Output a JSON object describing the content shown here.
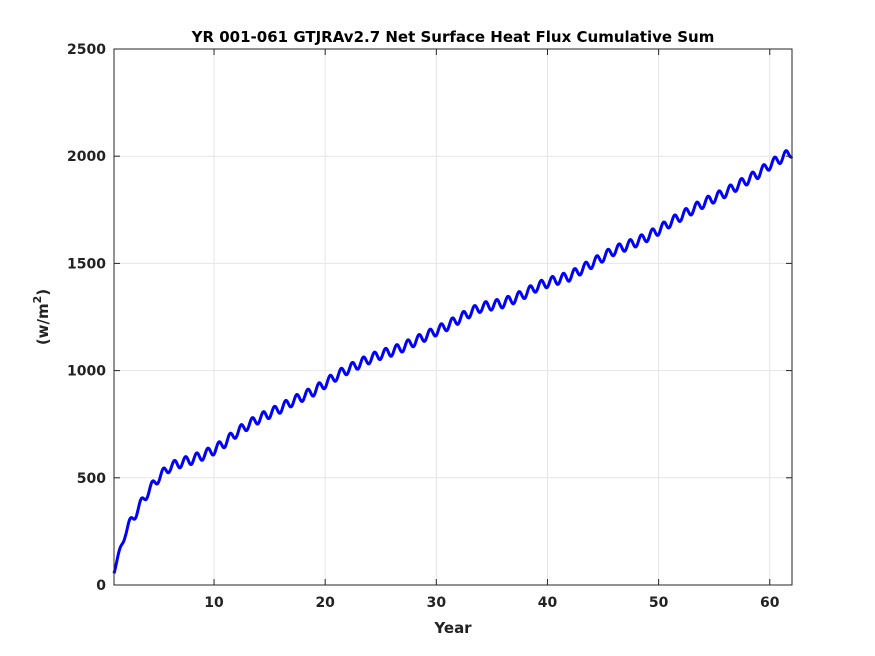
{
  "chart_data": {
    "type": "line",
    "title": "YR 001-061 GTJRAv2.7 Net Surface Heat Flux  Cumulative Sum",
    "xlabel": "Year",
    "ylabel_base": "(w/m",
    "ylabel_sup": "2",
    "ylabel_close": ")",
    "xlim": [
      1,
      62
    ],
    "ylim": [
      0,
      2500
    ],
    "xticks": [
      10,
      20,
      30,
      40,
      50,
      60
    ],
    "yticks": [
      0,
      500,
      1000,
      1500,
      2000,
      2500
    ],
    "grid": true,
    "series": [
      {
        "color": "#0000ff",
        "x": [
          1,
          2,
          3,
          4,
          5,
          6,
          7,
          8,
          9,
          10,
          11,
          12,
          13,
          14,
          15,
          16,
          17,
          18,
          19,
          20,
          21,
          22,
          23,
          24,
          25,
          26,
          27,
          28,
          29,
          30,
          31,
          32,
          33,
          34,
          35,
          36,
          37,
          38,
          39,
          40,
          41,
          42,
          43,
          44,
          45,
          46,
          47,
          48,
          49,
          50,
          51,
          52,
          53,
          54,
          55,
          56,
          57,
          58,
          59,
          60,
          61,
          62
        ],
        "trend": [
          60,
          245,
          340,
          430,
          500,
          550,
          570,
          585,
          605,
          630,
          665,
          710,
          745,
          775,
          800,
          825,
          855,
          880,
          905,
          940,
          975,
          1005,
          1030,
          1055,
          1075,
          1090,
          1110,
          1135,
          1160,
          1185,
          1210,
          1240,
          1270,
          1295,
          1305,
          1315,
          1335,
          1360,
          1390,
          1410,
          1425,
          1440,
          1470,
          1500,
          1530,
          1560,
          1580,
          1600,
          1625,
          1655,
          1690,
          1720,
          1750,
          1780,
          1805,
          1830,
          1860,
          1890,
          1920,
          1960,
          1990,
          2020
        ],
        "seasonal_amplitude": 22
      }
    ]
  }
}
